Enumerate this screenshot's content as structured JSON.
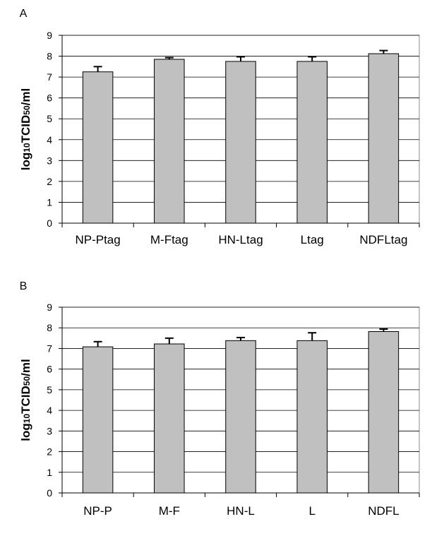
{
  "chart_data": [
    {
      "panel_label": "A",
      "type": "bar",
      "categories": [
        "NP-Ptag",
        "M-Ftag",
        "HN-Ltag",
        "Ltag",
        "NDFLtag"
      ],
      "values": [
        7.25,
        7.85,
        7.75,
        7.75,
        8.12
      ],
      "error_upper": [
        0.25,
        0.08,
        0.22,
        0.22,
        0.15
      ],
      "ylabel": {
        "main": "log",
        "sub1": "10",
        "mid": "TCID",
        "sub2": "50",
        "end": "/ml"
      },
      "ylim": [
        0,
        9
      ],
      "yticks": [
        0,
        1,
        2,
        3,
        4,
        5,
        6,
        7,
        8,
        9
      ],
      "grid": true,
      "bar_color": "#c0c0c0"
    },
    {
      "panel_label": "B",
      "type": "bar",
      "categories": [
        "NP-P",
        "M-F",
        "HN-L",
        "L",
        "NDFL"
      ],
      "values": [
        7.08,
        7.22,
        7.38,
        7.38,
        7.82
      ],
      "error_upper": [
        0.25,
        0.28,
        0.15,
        0.38,
        0.12
      ],
      "ylabel": {
        "main": "log",
        "sub1": "10",
        "mid": "TCID",
        "sub2": "50",
        "end": "/ml"
      },
      "ylim": [
        0,
        9
      ],
      "yticks": [
        0,
        1,
        2,
        3,
        4,
        5,
        6,
        7,
        8,
        9
      ],
      "grid": true,
      "bar_color": "#c0c0c0"
    }
  ]
}
